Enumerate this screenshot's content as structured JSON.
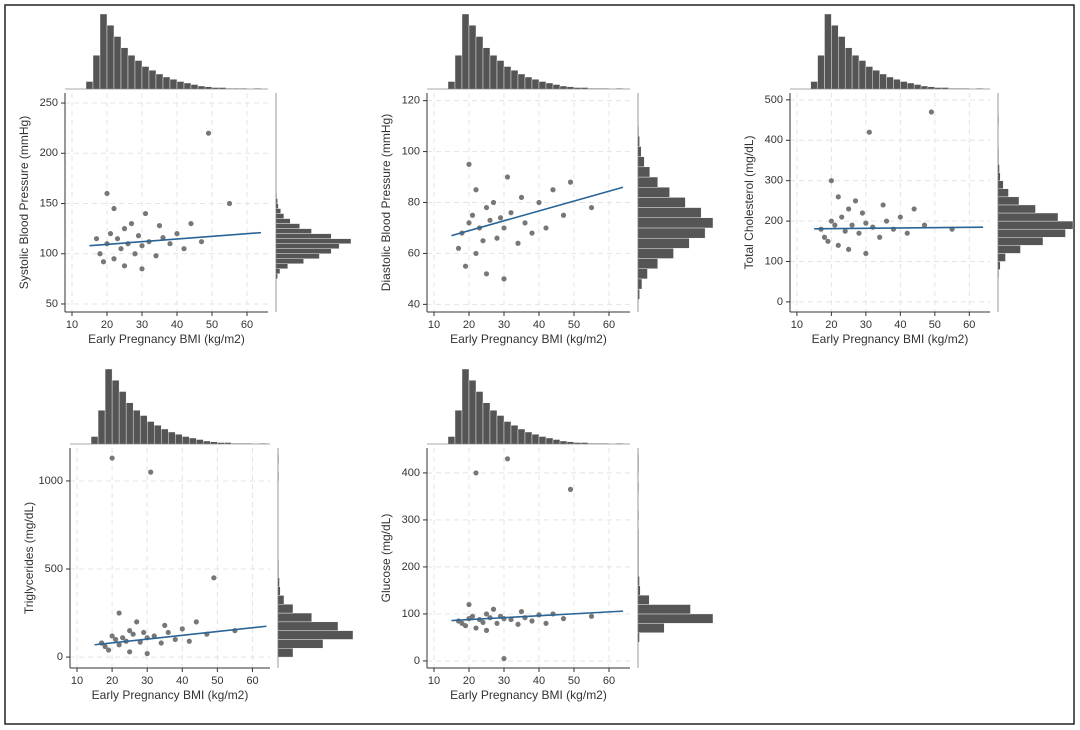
{
  "chart_data": [
    {
      "type": "scatter",
      "xlabel": "Early Pregnancy BMI (kg/m2)",
      "ylabel": "Systolic Blood Pressure (mmHg)",
      "xlim": [
        8,
        66
      ],
      "xticks": [
        10,
        20,
        30,
        40,
        50,
        60
      ],
      "ylim": [
        42,
        260
      ],
      "yticks": [
        50,
        100,
        150,
        200,
        250
      ],
      "grid": true,
      "color": "#777777",
      "x": [
        17,
        18,
        19,
        20,
        20,
        21,
        22,
        22,
        23,
        24,
        25,
        25,
        26,
        27,
        28,
        29,
        30,
        30,
        31,
        32,
        34,
        35,
        36,
        38,
        40,
        42,
        44,
        47,
        49,
        55
      ],
      "y": [
        115,
        100,
        92,
        110,
        160,
        120,
        95,
        145,
        115,
        105,
        125,
        88,
        110,
        130,
        100,
        118,
        108,
        85,
        140,
        112,
        98,
        128,
        116,
        110,
        120,
        105,
        130,
        112,
        220,
        150
      ],
      "fit": {
        "color": "#2a6496",
        "x": [
          15,
          64
        ],
        "y": [
          108,
          121
        ]
      },
      "x_hist": {
        "color": "#555555",
        "bins": [
          14,
          16,
          18,
          20,
          22,
          24,
          26,
          28,
          30,
          32,
          34,
          36,
          38,
          40,
          42,
          44,
          46,
          48,
          50,
          52,
          54,
          56,
          58,
          60,
          62,
          64
        ],
        "counts": [
          10,
          45,
          100,
          85,
          70,
          55,
          45,
          38,
          30,
          25,
          20,
          16,
          13,
          10,
          8,
          6,
          4,
          3,
          2,
          2,
          1,
          1,
          1,
          0,
          1
        ]
      },
      "y_hist": {
        "color": "#555555",
        "bins": [
          75,
          80,
          85,
          90,
          95,
          100,
          105,
          110,
          115,
          120,
          125,
          130,
          135,
          140,
          145,
          150,
          155,
          160
        ],
        "counts": [
          2,
          5,
          15,
          35,
          55,
          70,
          80,
          95,
          70,
          45,
          30,
          18,
          10,
          6,
          3,
          2,
          1
        ]
      }
    },
    {
      "type": "scatter",
      "xlabel": "Early Pregnancy BMI (kg/m2)",
      "ylabel": "Diastolic Blood Pressure (mmHg)",
      "xlim": [
        8,
        66
      ],
      "xticks": [
        10,
        20,
        30,
        40,
        50,
        60
      ],
      "ylim": [
        37,
        123
      ],
      "yticks": [
        40,
        60,
        80,
        100,
        120
      ],
      "grid": true,
      "color": "#777777",
      "x": [
        17,
        18,
        19,
        20,
        20,
        21,
        22,
        22,
        23,
        24,
        25,
        25,
        26,
        27,
        28,
        29,
        30,
        30,
        31,
        32,
        34,
        35,
        36,
        38,
        40,
        42,
        44,
        47,
        49,
        55
      ],
      "y": [
        62,
        68,
        55,
        72,
        95,
        75,
        60,
        85,
        70,
        65,
        78,
        52,
        73,
        80,
        66,
        74,
        70,
        50,
        90,
        76,
        64,
        82,
        72,
        68,
        80,
        70,
        85,
        75,
        88,
        78
      ],
      "fit": {
        "color": "#2a6496",
        "x": [
          15,
          64
        ],
        "y": [
          67,
          86
        ]
      },
      "x_hist": {
        "color": "#555555",
        "bins": [
          14,
          16,
          18,
          20,
          22,
          24,
          26,
          28,
          30,
          32,
          34,
          36,
          38,
          40,
          42,
          44,
          46,
          48,
          50,
          52,
          54,
          56,
          58,
          60,
          62,
          64
        ],
        "counts": [
          10,
          45,
          100,
          85,
          70,
          55,
          45,
          38,
          30,
          25,
          20,
          16,
          13,
          10,
          8,
          6,
          4,
          3,
          2,
          2,
          1,
          1,
          1,
          0,
          1
        ]
      },
      "y_hist": {
        "color": "#555555",
        "bins": [
          42,
          46,
          50,
          54,
          58,
          62,
          66,
          70,
          74,
          78,
          82,
          86,
          90,
          94,
          98,
          102,
          106,
          110
        ],
        "counts": [
          2,
          5,
          12,
          25,
          45,
          65,
          85,
          95,
          80,
          60,
          40,
          25,
          15,
          8,
          4,
          2,
          1
        ]
      }
    },
    {
      "type": "scatter",
      "xlabel": "Early Pregnancy BMI (kg/m2)",
      "ylabel": "Total Cholesterol (mg/dL)",
      "xlim": [
        8,
        66
      ],
      "xticks": [
        10,
        20,
        30,
        40,
        50,
        60
      ],
      "ylim": [
        -25,
        517
      ],
      "yticks": [
        0,
        100,
        200,
        300,
        400,
        500
      ],
      "grid": true,
      "color": "#777777",
      "x": [
        17,
        18,
        19,
        20,
        20,
        21,
        22,
        22,
        23,
        24,
        25,
        25,
        26,
        27,
        28,
        29,
        30,
        30,
        31,
        32,
        34,
        35,
        36,
        38,
        40,
        42,
        44,
        47,
        49,
        55
      ],
      "y": [
        180,
        160,
        150,
        200,
        300,
        190,
        140,
        260,
        210,
        175,
        230,
        130,
        190,
        250,
        170,
        220,
        195,
        120,
        420,
        185,
        160,
        240,
        200,
        180,
        210,
        170,
        230,
        190,
        470,
        180
      ],
      "fit": {
        "color": "#2a6496",
        "x": [
          15,
          64
        ],
        "y": [
          181,
          185
        ]
      },
      "x_hist": {
        "color": "#555555",
        "bins": [
          14,
          16,
          18,
          20,
          22,
          24,
          26,
          28,
          30,
          32,
          34,
          36,
          38,
          40,
          42,
          44,
          46,
          48,
          50,
          52,
          54,
          56,
          58,
          60,
          62,
          64
        ],
        "counts": [
          10,
          45,
          100,
          85,
          70,
          55,
          45,
          38,
          30,
          25,
          20,
          16,
          13,
          10,
          8,
          6,
          4,
          3,
          2,
          2,
          1,
          1,
          1,
          0,
          1
        ]
      },
      "y_hist": {
        "color": "#555555",
        "bins": [
          60,
          80,
          100,
          120,
          140,
          160,
          180,
          200,
          220,
          240,
          260,
          280,
          300,
          320,
          340,
          360,
          380,
          400,
          420,
          440,
          460
        ],
        "counts": [
          1,
          3,
          10,
          30,
          60,
          90,
          100,
          80,
          50,
          28,
          14,
          7,
          3,
          2,
          1,
          1,
          0,
          0,
          0,
          1
        ]
      }
    },
    {
      "type": "scatter",
      "xlabel": "Early Pregnancy BMI (kg/m2)",
      "ylabel": "Triglycerides (mg/dL)",
      "xlim": [
        8,
        65
      ],
      "xticks": [
        10,
        20,
        30,
        40,
        50,
        60
      ],
      "ylim": [
        -62,
        1187
      ],
      "yticks": [
        0,
        500,
        1000
      ],
      "grid": true,
      "color": "#777777",
      "x": [
        17,
        18,
        19,
        20,
        20,
        21,
        22,
        22,
        23,
        24,
        25,
        25,
        26,
        27,
        28,
        29,
        30,
        30,
        31,
        32,
        34,
        35,
        36,
        38,
        40,
        42,
        44,
        47,
        49,
        55
      ],
      "y": [
        80,
        60,
        40,
        120,
        1130,
        100,
        70,
        250,
        110,
        90,
        150,
        30,
        130,
        200,
        85,
        140,
        110,
        20,
        1050,
        120,
        80,
        180,
        140,
        100,
        160,
        90,
        200,
        130,
        450,
        150
      ],
      "fit": {
        "color": "#2a6496",
        "x": [
          15,
          64
        ],
        "y": [
          70,
          175
        ]
      },
      "x_hist": {
        "color": "#555555",
        "bins": [
          14,
          16,
          18,
          20,
          22,
          24,
          26,
          28,
          30,
          32,
          34,
          36,
          38,
          40,
          42,
          44,
          46,
          48,
          50,
          52,
          54,
          56,
          58,
          60,
          62,
          64
        ],
        "counts": [
          10,
          45,
          100,
          85,
          70,
          55,
          45,
          38,
          30,
          25,
          20,
          16,
          13,
          10,
          8,
          6,
          4,
          3,
          2,
          2,
          1,
          1,
          1,
          0,
          1
        ]
      },
      "y_hist": {
        "color": "#555555",
        "bins": [
          0,
          50,
          100,
          150,
          200,
          250,
          300,
          350,
          400,
          450,
          500,
          550,
          600,
          650,
          700,
          750,
          800,
          850,
          900,
          950,
          1000,
          1050,
          1100,
          1150
        ],
        "counts": [
          20,
          60,
          100,
          80,
          45,
          20,
          8,
          3,
          2,
          1,
          1,
          0,
          0,
          0,
          0,
          0,
          0,
          0,
          0,
          0,
          1,
          0,
          1
        ]
      }
    },
    {
      "type": "scatter",
      "xlabel": "Early Pregnancy BMI (kg/m2)",
      "ylabel": "Glucose (mg/dL)",
      "xlim": [
        8,
        66
      ],
      "xticks": [
        10,
        20,
        30,
        40,
        50,
        60
      ],
      "ylim": [
        -15,
        453
      ],
      "yticks": [
        0,
        100,
        200,
        300,
        400
      ],
      "grid": true,
      "color": "#777777",
      "x": [
        17,
        18,
        19,
        20,
        20,
        21,
        22,
        22,
        23,
        24,
        25,
        25,
        26,
        27,
        28,
        29,
        30,
        30,
        31,
        32,
        34,
        35,
        36,
        38,
        40,
        42,
        44,
        47,
        49,
        55
      ],
      "y": [
        85,
        80,
        75,
        90,
        120,
        95,
        70,
        400,
        88,
        82,
        100,
        65,
        92,
        110,
        80,
        95,
        90,
        5,
        430,
        88,
        78,
        105,
        92,
        85,
        98,
        80,
        100,
        90,
        365,
        95
      ],
      "fit": {
        "color": "#2a6496",
        "x": [
          15,
          64
        ],
        "y": [
          86,
          106
        ]
      },
      "x_hist": {
        "color": "#555555",
        "bins": [
          14,
          16,
          18,
          20,
          22,
          24,
          26,
          28,
          30,
          32,
          34,
          36,
          38,
          40,
          42,
          44,
          46,
          48,
          50,
          52,
          54,
          56,
          58,
          60,
          62,
          64
        ],
        "counts": [
          10,
          45,
          100,
          85,
          70,
          55,
          45,
          38,
          30,
          25,
          20,
          16,
          13,
          10,
          8,
          6,
          4,
          3,
          2,
          2,
          1,
          1,
          1,
          0,
          1
        ]
      },
      "y_hist": {
        "color": "#555555",
        "bins": [
          40,
          60,
          80,
          100,
          120,
          140,
          160,
          180,
          200,
          220,
          240,
          260,
          280,
          300,
          320,
          340,
          360,
          380,
          400,
          420,
          440
        ],
        "counts": [
          2,
          35,
          100,
          70,
          15,
          3,
          2,
          1,
          1,
          1,
          1,
          1,
          0,
          1,
          0,
          0,
          1,
          0,
          1,
          1
        ]
      }
    }
  ]
}
